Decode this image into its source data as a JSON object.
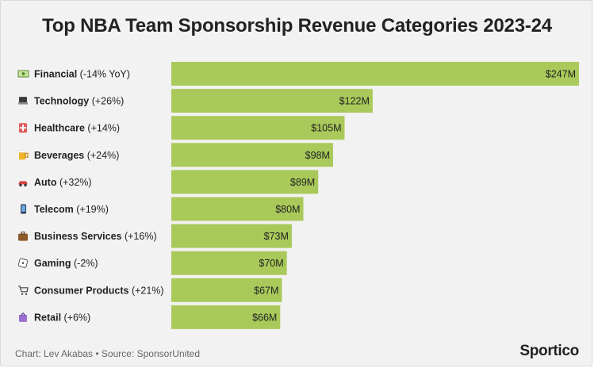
{
  "chart_data": {
    "type": "bar",
    "orientation": "horizontal",
    "title": "Top NBA Team Sponsorship Revenue Categories 2023-24",
    "categories": [
      {
        "icon": "money-icon",
        "name": "Financial",
        "change": "(-14% YoY)",
        "value": 247,
        "value_label": "$247M"
      },
      {
        "icon": "laptop-icon",
        "name": "Technology",
        "change": "(+26%)",
        "value": 122,
        "value_label": "$122M"
      },
      {
        "icon": "health-icon",
        "name": "Healthcare",
        "change": "(+14%)",
        "value": 105,
        "value_label": "$105M"
      },
      {
        "icon": "beer-icon",
        "name": "Beverages",
        "change": "(+24%)",
        "value": 98,
        "value_label": "$98M"
      },
      {
        "icon": "car-icon",
        "name": "Auto",
        "change": "(+32%)",
        "value": 89,
        "value_label": "$89M"
      },
      {
        "icon": "phone-icon",
        "name": "Telecom",
        "change": "(+19%)",
        "value": 80,
        "value_label": "$80M"
      },
      {
        "icon": "briefcase-icon",
        "name": "Business Services",
        "change": "(+16%)",
        "value": 73,
        "value_label": "$73M"
      },
      {
        "icon": "dice-icon",
        "name": "Gaming",
        "change": "(-2%)",
        "value": 70,
        "value_label": "$70M"
      },
      {
        "icon": "cart-icon",
        "name": "Consumer Products",
        "change": "(+21%)",
        "value": 67,
        "value_label": "$67M"
      },
      {
        "icon": "shopping-bag-icon",
        "name": "Retail",
        "change": "(+6%)",
        "value": 66,
        "value_label": "$66M"
      }
    ],
    "unit": "$M",
    "xlim": [
      0,
      247
    ],
    "grid": false,
    "colors": {
      "bar": "#a9c95a",
      "text": "#222222"
    }
  },
  "footer": {
    "source": "Chart: Lev Akabas • Source: SponsorUnited",
    "brand": "Sportico"
  }
}
